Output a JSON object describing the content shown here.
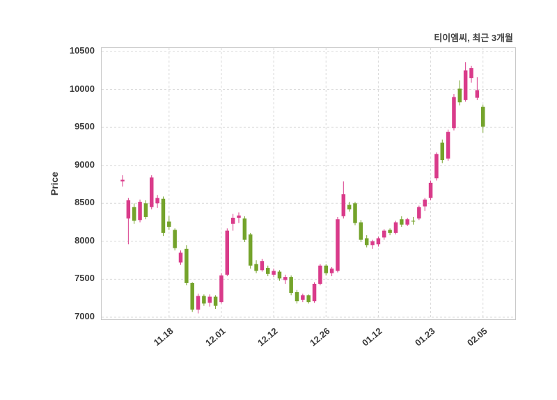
{
  "header": {
    "legend": "티이엠씨, 최근 3개월"
  },
  "chart_data": {
    "type": "candlestick",
    "title": "티이엠씨, 최근 3개월",
    "ylabel": "Price",
    "ylim": [
      7000,
      10500
    ],
    "y_ticks": [
      10500,
      10000,
      9500,
      9000,
      8500,
      8000,
      7500,
      7000
    ],
    "x_ticks": [
      {
        "label": "11.18",
        "index": 8
      },
      {
        "label": "12.01",
        "index": 17
      },
      {
        "label": "12.12",
        "index": 26
      },
      {
        "label": "12.26",
        "index": 35
      },
      {
        "label": "01.12",
        "index": 44
      },
      {
        "label": "01.23",
        "index": 53
      },
      {
        "label": "02.05",
        "index": 62
      }
    ],
    "up_color": "#d93b8a",
    "down_color": "#74a32b",
    "grid": true,
    "legend_position": "top-right",
    "candles": [
      [
        8790,
        8870,
        8720,
        8810
      ],
      [
        8300,
        8570,
        7960,
        8540
      ],
      [
        8450,
        8500,
        8230,
        8270
      ],
      [
        8280,
        8550,
        8250,
        8520
      ],
      [
        8500,
        8540,
        8290,
        8320
      ],
      [
        8450,
        8870,
        8420,
        8840
      ],
      [
        8500,
        8610,
        8440,
        8570
      ],
      [
        8560,
        8590,
        8070,
        8110
      ],
      [
        8260,
        8330,
        8150,
        8190
      ],
      [
        8150,
        8170,
        7880,
        7910
      ],
      [
        7720,
        7880,
        7690,
        7850
      ],
      [
        7900,
        7950,
        7420,
        7450
      ],
      [
        7450,
        7460,
        7070,
        7100
      ],
      [
        7100,
        7310,
        7050,
        7280
      ],
      [
        7280,
        7300,
        7150,
        7180
      ],
      [
        7190,
        7300,
        7140,
        7270
      ],
      [
        7270,
        7290,
        7110,
        7150
      ],
      [
        7200,
        7580,
        7180,
        7550
      ],
      [
        7560,
        8170,
        7540,
        8140
      ],
      [
        8230,
        8360,
        8140,
        8310
      ],
      [
        8310,
        8380,
        8240,
        8340
      ],
      [
        8300,
        8330,
        7990,
        8020
      ],
      [
        8090,
        8110,
        7640,
        7680
      ],
      [
        7700,
        7750,
        7580,
        7610
      ],
      [
        7620,
        7770,
        7600,
        7740
      ],
      [
        7650,
        7680,
        7540,
        7570
      ],
      [
        7560,
        7640,
        7530,
        7610
      ],
      [
        7600,
        7620,
        7480,
        7510
      ],
      [
        7490,
        7560,
        7440,
        7530
      ],
      [
        7530,
        7550,
        7290,
        7320
      ],
      [
        7330,
        7360,
        7180,
        7210
      ],
      [
        7230,
        7310,
        7200,
        7290
      ],
      [
        7290,
        7300,
        7180,
        7200
      ],
      [
        7210,
        7460,
        7190,
        7440
      ],
      [
        7440,
        7700,
        7420,
        7680
      ],
      [
        7680,
        7700,
        7550,
        7580
      ],
      [
        7580,
        7660,
        7540,
        7640
      ],
      [
        7610,
        8320,
        7590,
        8290
      ],
      [
        8330,
        8790,
        8300,
        8620
      ],
      [
        8480,
        8520,
        8390,
        8420
      ],
      [
        8500,
        8520,
        8210,
        8240
      ],
      [
        8250,
        8280,
        7990,
        8020
      ],
      [
        8040,
        8080,
        7920,
        7950
      ],
      [
        7950,
        8020,
        7900,
        8000
      ],
      [
        7960,
        8060,
        7930,
        8040
      ],
      [
        8050,
        8160,
        8020,
        8140
      ],
      [
        8150,
        8170,
        8080,
        8110
      ],
      [
        8110,
        8270,
        8090,
        8250
      ],
      [
        8290,
        8330,
        8190,
        8220
      ],
      [
        8220,
        8310,
        8200,
        8290
      ],
      [
        8270,
        8320,
        8220,
        8260
      ],
      [
        8300,
        8470,
        8280,
        8450
      ],
      [
        8460,
        8570,
        8400,
        8550
      ],
      [
        8570,
        8800,
        8540,
        8770
      ],
      [
        8830,
        9170,
        8800,
        9150
      ],
      [
        9300,
        9340,
        9030,
        9070
      ],
      [
        9090,
        9470,
        9060,
        9440
      ],
      [
        9490,
        9940,
        9460,
        9900
      ],
      [
        10010,
        10120,
        9790,
        9830
      ],
      [
        9860,
        10360,
        9840,
        10250
      ],
      [
        10150,
        10310,
        10090,
        10280
      ],
      [
        9890,
        10160,
        9860,
        9990
      ],
      [
        9770,
        9800,
        9430,
        9510
      ]
    ]
  }
}
